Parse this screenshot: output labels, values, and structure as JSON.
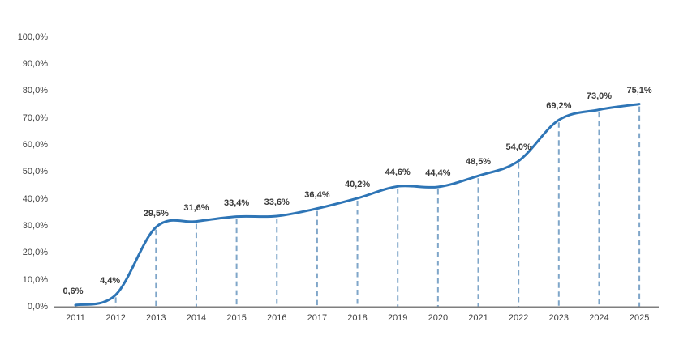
{
  "chart_data": {
    "type": "line",
    "title": "",
    "xlabel": "",
    "ylabel": "",
    "categories": [
      "2011",
      "2012",
      "2013",
      "2014",
      "2015",
      "2016",
      "2017",
      "2018",
      "2019",
      "2020",
      "2021",
      "2022",
      "2023",
      "2024",
      "2025"
    ],
    "values": [
      0.6,
      4.4,
      29.5,
      31.6,
      33.4,
      33.6,
      36.4,
      40.2,
      44.6,
      44.4,
      48.5,
      54.0,
      69.2,
      73.0,
      75.1
    ],
    "point_labels": [
      "0,6%",
      "4,4%",
      "29,5%",
      "31,6%",
      "33,4%",
      "33,6%",
      "36,4%",
      "40,2%",
      "44,6%",
      "44,4%",
      "48,5%",
      "54,0%",
      "69,2%",
      "73,0%",
      "75,1%"
    ],
    "y_tick_values": [
      0,
      10,
      20,
      30,
      40,
      50,
      60,
      70,
      80,
      90,
      100
    ],
    "y_tick_labels": [
      "0,0%",
      "10,0%",
      "20,0%",
      "30,0%",
      "40,0%",
      "50,0%",
      "60,0%",
      "70,0%",
      "80,0%",
      "90,0%",
      "100,0%"
    ],
    "ylim": [
      0,
      100
    ],
    "smooth": true,
    "grid": false,
    "legend": false,
    "droplines": true,
    "colors": {
      "line": "#2E75B6",
      "dropline": "#7FA6C9",
      "axis": "#7F7F7F",
      "tick_text": "#404040",
      "data_label_text": "#3A3A3A"
    }
  }
}
